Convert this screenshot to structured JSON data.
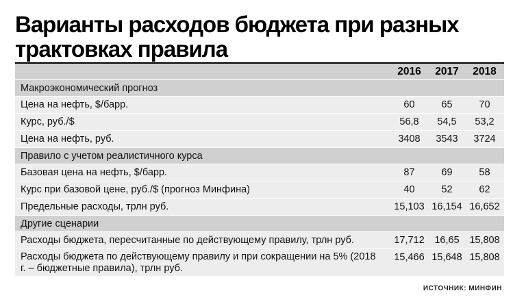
{
  "title": "Варианты расходов бюджета при разных трактовках правила",
  "source": "ИСТОЧНИК: МИНФИН",
  "chart_data": {
    "type": "table",
    "columns": [
      "2016",
      "2017",
      "2018"
    ],
    "sections": [
      {
        "name": "Макроэкономический прогноз",
        "rows": [
          {
            "label": "Цена на нефть, $/барр.",
            "values": [
              "60",
              "65",
              "70"
            ]
          },
          {
            "label": "Курс, руб./$",
            "values": [
              "56,8",
              "54,5",
              "53,2"
            ]
          },
          {
            "label": "Цена на нефть, руб.",
            "values": [
              "3408",
              "3543",
              "3724"
            ]
          }
        ]
      },
      {
        "name": "Правило с учетом реалистичного курса",
        "rows": [
          {
            "label": "Базовая цена на нефть, $/барр.",
            "values": [
              "87",
              "69",
              "58"
            ]
          },
          {
            "label": "Курс при базовой цене, руб./$ (прогноз Минфина)",
            "values": [
              "40",
              "52",
              "62"
            ]
          },
          {
            "label": "Предельные расходы, трлн руб.",
            "values": [
              "15,103",
              "16,154",
              "16,652"
            ]
          }
        ]
      },
      {
        "name": "Другие сценарии",
        "rows": [
          {
            "label": "Расходы бюджета, пересчитанные по действующему правилу, трлн руб.",
            "values": [
              "17,712",
              "16,65",
              "15,808"
            ]
          },
          {
            "label": "Расходы бюджета по действующему правилу и при сокращении на 5% (2018 г. – бюджетные правила), трлн руб.",
            "values": [
              "15,466",
              "15,648",
              "15,808"
            ]
          }
        ]
      }
    ]
  }
}
